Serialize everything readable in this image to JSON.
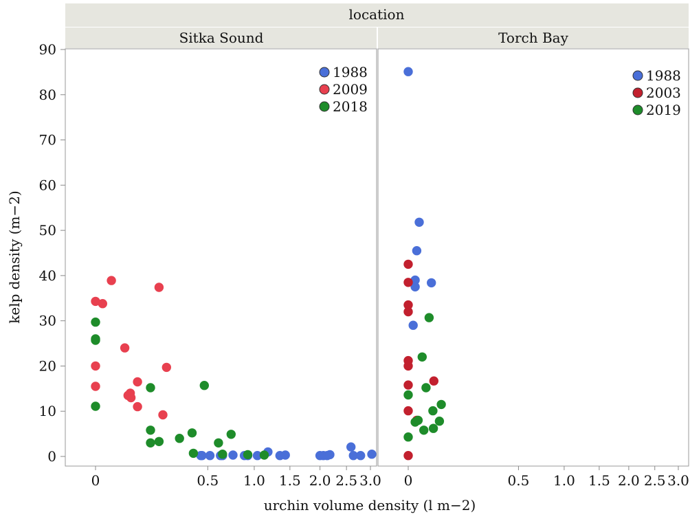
{
  "strip_title": "location",
  "panels": [
    {
      "name": "Sitka Sound",
      "legend": [
        {
          "label": "1988",
          "color": "#4a6fd8"
        },
        {
          "label": "2009",
          "color": "#e8404f"
        },
        {
          "label": "2018",
          "color": "#1e8c2a"
        }
      ]
    },
    {
      "name": "Torch Bay",
      "legend": [
        {
          "label": "1988",
          "color": "#4a6fd8"
        },
        {
          "label": "2003",
          "color": "#c2202e"
        },
        {
          "label": "2019",
          "color": "#1e8c2a"
        }
      ]
    }
  ],
  "axes": {
    "xlabel": "urchin volume density (l m−2)",
    "ylabel": "kelp density (m−2)",
    "y_ticks": [
      "0",
      "10",
      "20",
      "30",
      "40",
      "50",
      "60",
      "70",
      "80",
      "90"
    ],
    "x_ticks": [
      "0",
      "0.5",
      "1.0",
      "1.5",
      "2.0",
      "2.5",
      "3.0"
    ]
  },
  "chart_data": {
    "type": "scatter",
    "facet_by": "location",
    "x_scale": "sqrt",
    "xlim": [
      0,
      3.0
    ],
    "ylim": [
      0,
      90
    ],
    "xlabel": "urchin volume density (l m−2)",
    "ylabel": "kelp density (m−2)",
    "legend_position": "top-right",
    "grid": false,
    "facets": [
      {
        "location": "Sitka Sound",
        "series": [
          {
            "name": "1988",
            "color": "#4a6fd8",
            "points": [
              [
                0.44,
                0.2
              ],
              [
                0.45,
                0.2
              ],
              [
                0.52,
                0.2
              ],
              [
                0.62,
                0.2
              ],
              [
                0.64,
                0.2
              ],
              [
                0.75,
                0.3
              ],
              [
                0.88,
                0.2
              ],
              [
                0.92,
                0.2
              ],
              [
                1.04,
                0.2
              ],
              [
                1.18,
                1.0
              ],
              [
                1.35,
                0.2
              ],
              [
                1.43,
                0.3
              ],
              [
                2.0,
                0.2
              ],
              [
                2.06,
                0.2
              ],
              [
                2.13,
                0.2
              ],
              [
                2.18,
                0.4
              ],
              [
                2.59,
                2.1
              ],
              [
                2.64,
                0.2
              ],
              [
                2.79,
                0.2
              ],
              [
                3.03,
                0.5
              ]
            ]
          },
          {
            "name": "2009",
            "color": "#e8404f",
            "points": [
              [
                0.0,
                34.3
              ],
              [
                0.002,
                33.8
              ],
              [
                0.01,
                38.9
              ],
              [
                0.0,
                20.0
              ],
              [
                0.0,
                15.5
              ],
              [
                0.034,
                24.0
              ],
              [
                0.042,
                13.5
              ],
              [
                0.048,
                14.0
              ],
              [
                0.05,
                13.0
              ],
              [
                0.07,
                16.5
              ],
              [
                0.07,
                11.0
              ],
              [
                0.16,
                37.4
              ],
              [
                0.18,
                9.2
              ],
              [
                0.2,
                19.7
              ]
            ]
          },
          {
            "name": "2018",
            "color": "#1e8c2a",
            "points": [
              [
                0.0,
                29.7
              ],
              [
                0.0,
                26.0
              ],
              [
                0.0,
                25.7
              ],
              [
                0.0,
                11.1
              ],
              [
                0.12,
                5.8
              ],
              [
                0.12,
                3.0
              ],
              [
                0.12,
                15.2
              ],
              [
                0.16,
                3.3
              ],
              [
                0.28,
                4.0
              ],
              [
                0.37,
                5.2
              ],
              [
                0.38,
                0.7
              ],
              [
                0.47,
                15.7
              ],
              [
                0.6,
                3.0
              ],
              [
                0.64,
                0.5
              ],
              [
                0.73,
                4.9
              ],
              [
                0.92,
                0.4
              ],
              [
                1.13,
                0.3
              ]
            ]
          }
        ]
      },
      {
        "location": "Torch Bay",
        "series": [
          {
            "name": "1988",
            "color": "#4a6fd8",
            "points": [
              [
                0.0,
                85.1
              ],
              [
                0.002,
                39.0
              ],
              [
                0.002,
                37.5
              ],
              [
                0.001,
                29.0
              ],
              [
                0.003,
                45.5
              ],
              [
                0.005,
                51.8
              ],
              [
                0.022,
                38.4
              ]
            ]
          },
          {
            "name": "2003",
            "color": "#c2202e",
            "points": [
              [
                0.0,
                42.5
              ],
              [
                0.0,
                38.5
              ],
              [
                0.0,
                33.5
              ],
              [
                0.0,
                32.0
              ],
              [
                0.0,
                21.2
              ],
              [
                0.0,
                20.0
              ],
              [
                0.0,
                15.8
              ],
              [
                0.0,
                10.1
              ],
              [
                0.0,
                0.2
              ],
              [
                0.003,
                8.0
              ],
              [
                0.027,
                16.7
              ]
            ]
          },
          {
            "name": "2019",
            "color": "#1e8c2a",
            "points": [
              [
                0.0,
                13.6
              ],
              [
                0.0,
                4.3
              ],
              [
                0.002,
                7.6
              ],
              [
                0.004,
                8.0
              ],
              [
                0.008,
                22.0
              ],
              [
                0.01,
                5.8
              ],
              [
                0.013,
                15.2
              ],
              [
                0.018,
                30.7
              ],
              [
                0.025,
                10.1
              ],
              [
                0.026,
                6.2
              ],
              [
                0.04,
                7.8
              ],
              [
                0.045,
                11.5
              ]
            ]
          }
        ]
      }
    ]
  }
}
